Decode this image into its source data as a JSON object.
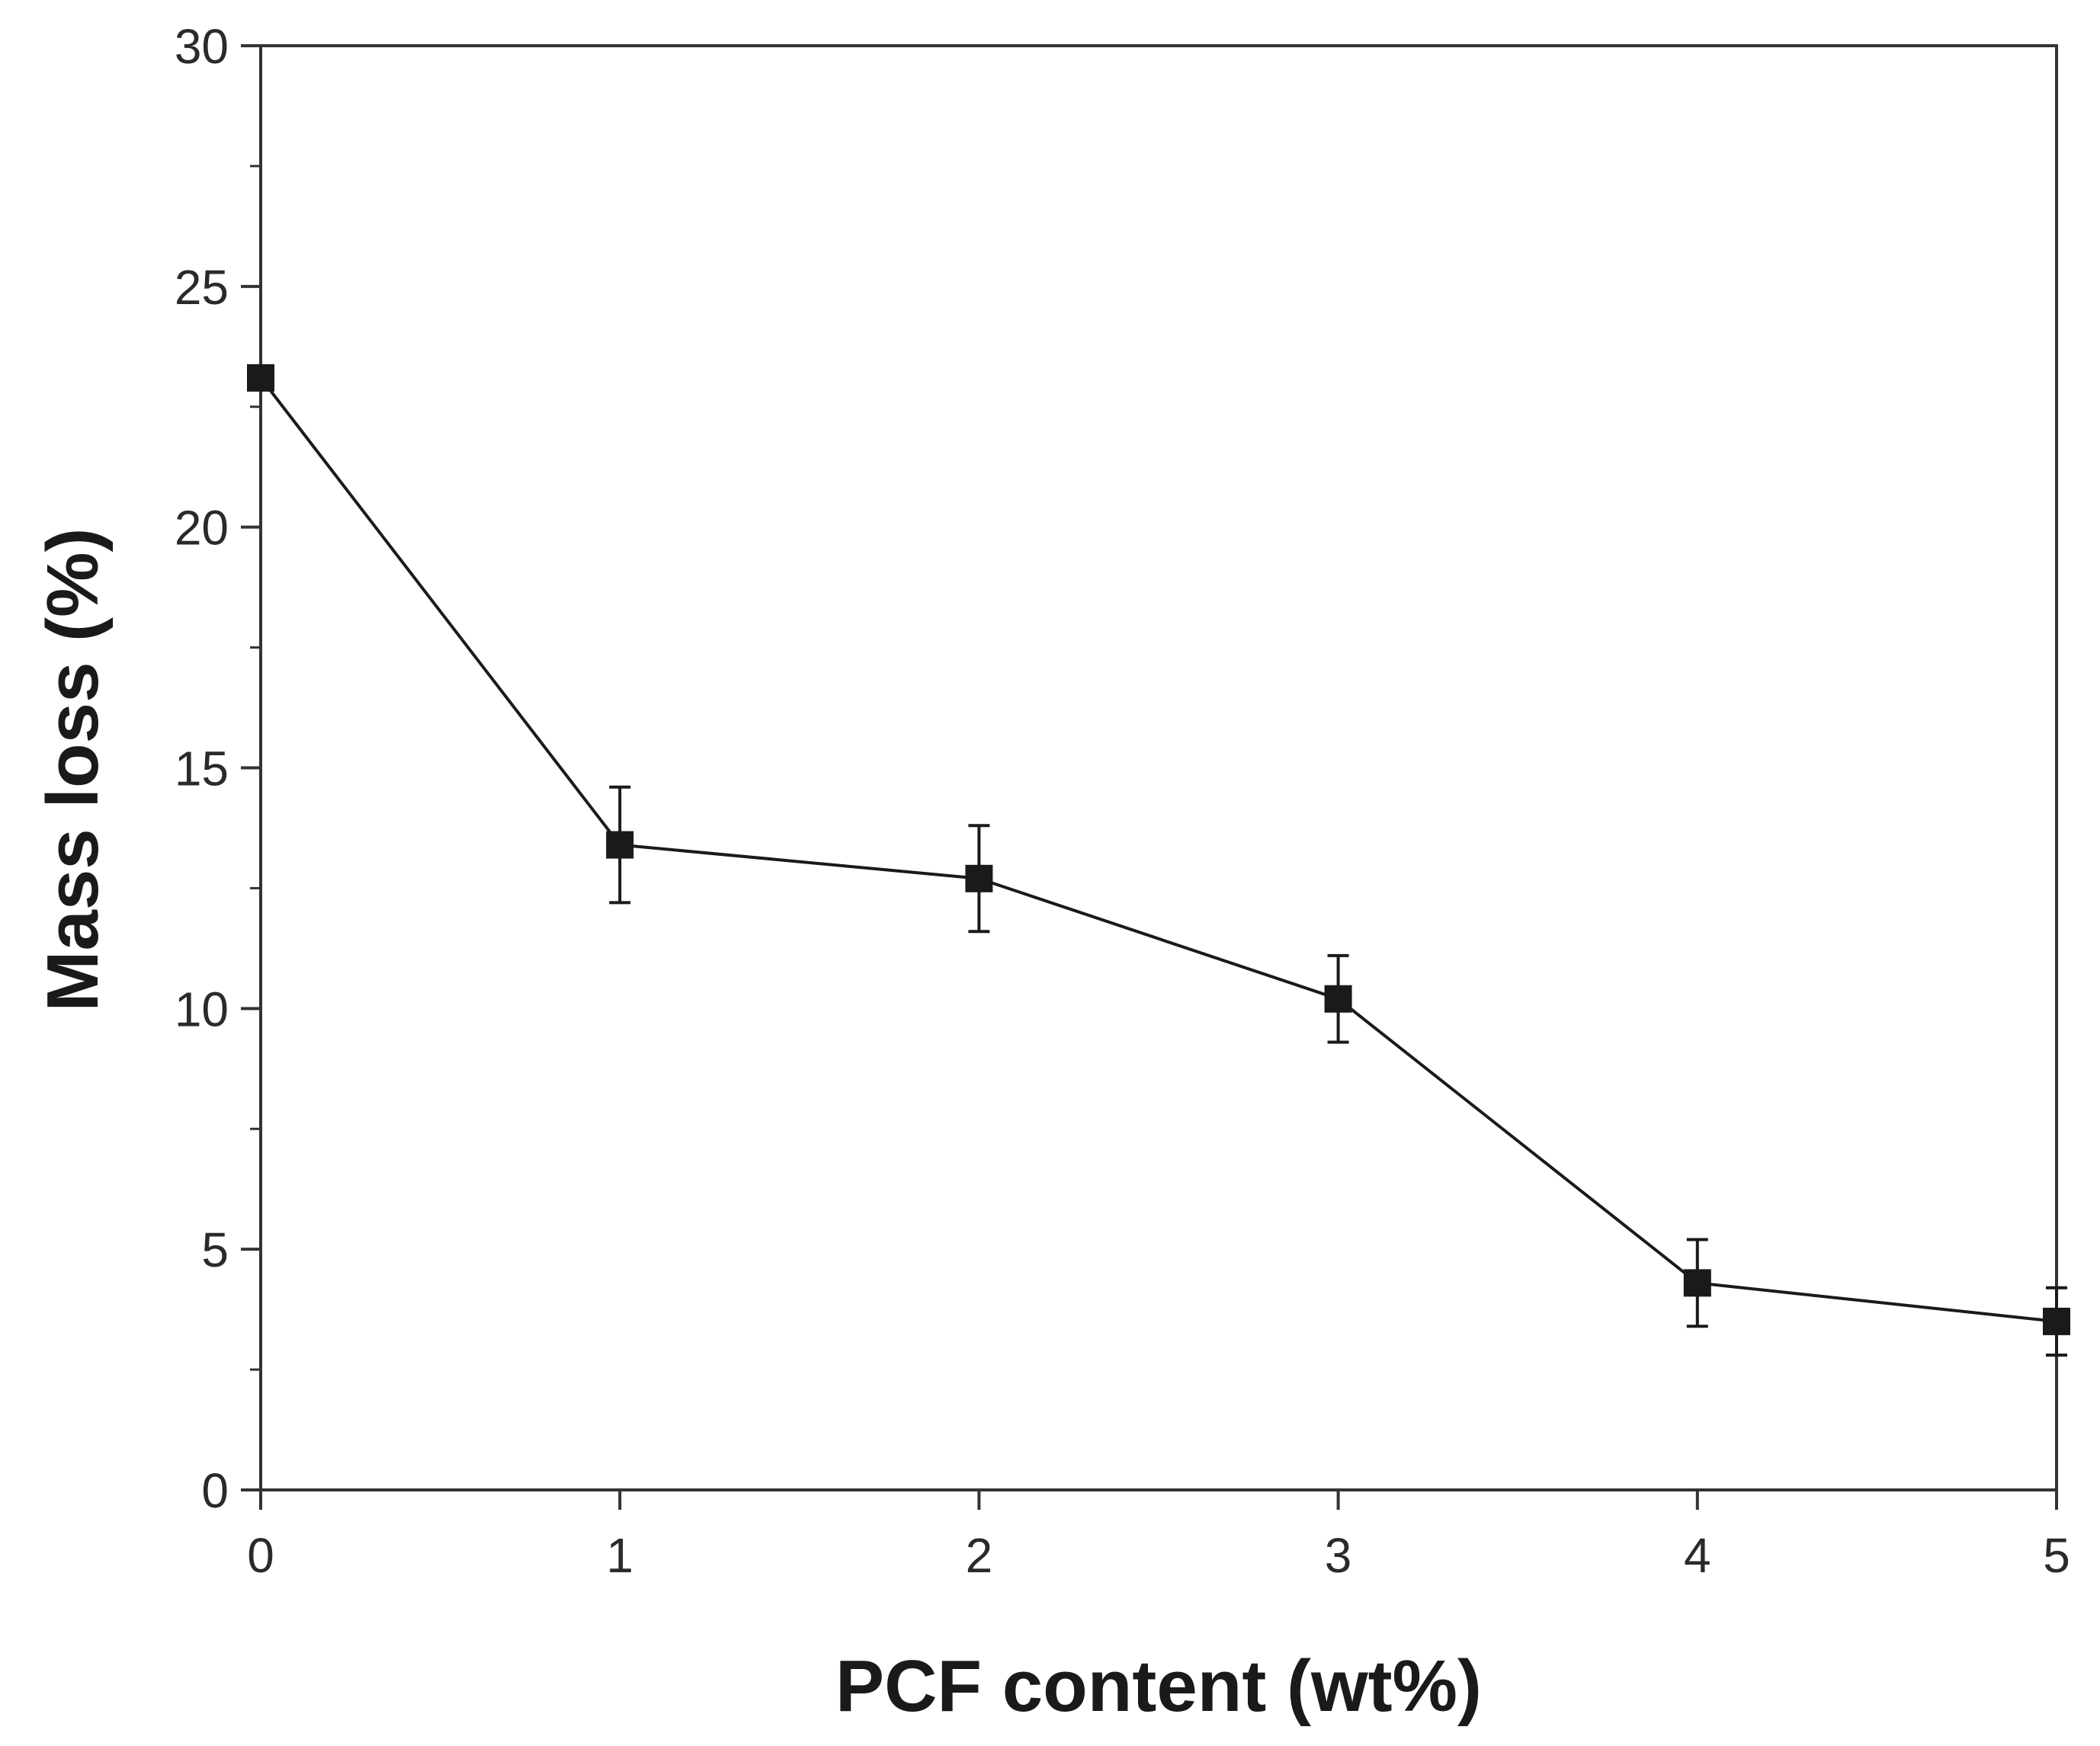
{
  "chart_data": {
    "type": "line",
    "title": "",
    "xlabel": "PCF content (wt%)",
    "ylabel": "Mass loss (%)",
    "xlim": [
      0,
      5
    ],
    "ylim": [
      0,
      30
    ],
    "x_ticks": [
      "0",
      "1",
      "2",
      "3",
      "4",
      "5"
    ],
    "y_ticks": [
      "0",
      "5",
      "10",
      "15",
      "20",
      "25",
      "30"
    ],
    "grid": false,
    "series": [
      {
        "name": "Mass loss",
        "marker": "square",
        "color": "#1a1a1a",
        "x": [
          0,
          1,
          2,
          3,
          4,
          5
        ],
        "y": [
          23.1,
          13.4,
          12.7,
          10.2,
          4.3,
          3.5
        ],
        "error": [
          0,
          1.2,
          1.1,
          0.9,
          0.9,
          0.7
        ]
      }
    ]
  }
}
